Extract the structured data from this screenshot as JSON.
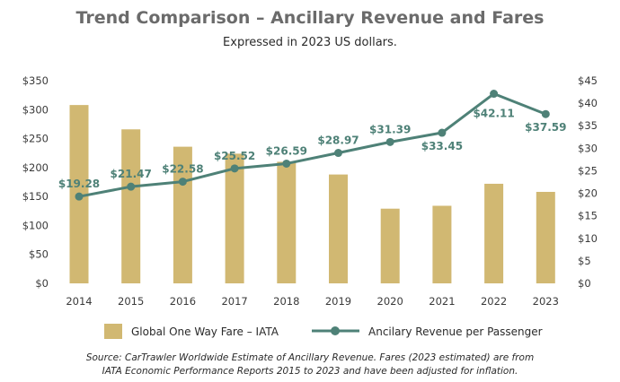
{
  "chart_data": {
    "type": "bar+line",
    "title": "Trend Comparison – Ancillary Revenue and Fares",
    "subtitle": "Expressed in 2023 US dollars.",
    "categories": [
      "2014",
      "2015",
      "2016",
      "2017",
      "2018",
      "2019",
      "2020",
      "2021",
      "2022",
      "2023"
    ],
    "left_axis": {
      "ylim": [
        0,
        350
      ],
      "ticks": [
        0,
        50,
        100,
        150,
        200,
        250,
        300,
        350
      ],
      "tick_labels": [
        "$0",
        "$50",
        "$100",
        "$150",
        "$200",
        "$250",
        "$300",
        "$350"
      ]
    },
    "right_axis": {
      "ylim": [
        0,
        45
      ],
      "ticks": [
        0,
        5,
        10,
        15,
        20,
        25,
        30,
        35,
        40,
        45
      ],
      "tick_labels": [
        "$0",
        "$5",
        "$10",
        "$15",
        "$20",
        "$25",
        "$30",
        "$35",
        "$40",
        "$45"
      ]
    },
    "series": [
      {
        "name": "Global One Way Fare – IATA",
        "type": "bar",
        "axis": "left",
        "color": "#d1b872",
        "values": [
          308,
          266,
          236,
          224,
          210,
          188,
          129,
          134,
          172,
          158
        ]
      },
      {
        "name": "Ancilary Revenue per Passenger",
        "type": "line",
        "axis": "right",
        "color": "#4e8177",
        "values": [
          19.28,
          21.47,
          22.58,
          25.52,
          26.59,
          28.97,
          31.39,
          33.45,
          42.11,
          37.59
        ],
        "labels": [
          "$19.28",
          "$21.47",
          "$22.58",
          "$25.52",
          "$26.59",
          "$28.97",
          "$31.39",
          "$33.45",
          "$42.11",
          "$37.59"
        ]
      }
    ],
    "grid": false,
    "legend": "bottom"
  },
  "source_lines": [
    "Source: CarTrawler Worldwide Estimate of Ancillary Revenue. Fares (2023 estimated) are from",
    "IATA Economic Performance Reports 2015 to 2023 and have been adjusted for inflation."
  ]
}
